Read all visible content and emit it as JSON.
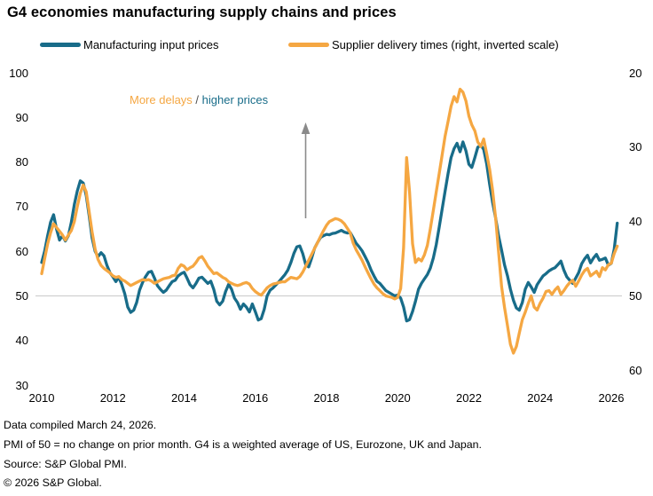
{
  "title": "G4 economies manufacturing supply chains and prices",
  "colors": {
    "input_prices": "#186c89",
    "delivery_times": "#f5a742",
    "gridline": "#c9c9c9",
    "arrow": "#8a8a8a",
    "annotation_slash": "#4d4d4d",
    "text": "#000000"
  },
  "legend": {
    "items": [
      {
        "label": "Manufacturing input prices",
        "color": "#186c89"
      },
      {
        "label": "Supplier delivery times (right, inverted scale)",
        "color": "#f5a742"
      }
    ]
  },
  "annotation": {
    "more_delays": "More delays",
    "separator": " / ",
    "higher_prices": "higher prices"
  },
  "axes": {
    "left": {
      "ticks": [
        100,
        90,
        80,
        70,
        60,
        50,
        40,
        30
      ],
      "range": [
        30,
        100
      ]
    },
    "right": {
      "ticks": [
        20,
        30,
        40,
        50,
        60
      ],
      "range": [
        20,
        60
      ],
      "inverted": true
    },
    "x": {
      "ticks": [
        2010,
        2012,
        2014,
        2016,
        2018,
        2020,
        2022,
        2024,
        2026
      ]
    },
    "gridline_at_left_value": 50
  },
  "footer": {
    "line1": "Data compiled March 24, 2026.",
    "line2": "PMI of 50 = no change on prior month. G4 is a weighted average of US, Eurozone, UK and Japan.",
    "line3": "Source: S&P Global PMI.",
    "line4": "© 2026 S&P Global."
  },
  "chart_data": {
    "type": "line",
    "x_start": 2010.0,
    "x_step_years": 0.083333,
    "x_unit": "monthly, Jan 2010 - Mar 2026",
    "xlim": [
      2010,
      2026.3
    ],
    "left_ylim": [
      30,
      100
    ],
    "right_ylim_inverted": [
      20,
      60
    ],
    "grid": "single horizontal line at 50",
    "legend_position": "top",
    "series": [
      {
        "name": "Manufacturing input prices",
        "axis": "left",
        "color": "#186c89",
        "values": [
          57.5,
          60,
          63.5,
          66.5,
          68.2,
          65,
          62.5,
          63.5,
          62.3,
          63.5,
          66.5,
          70.5,
          73.5,
          75.8,
          75.3,
          72.5,
          68,
          63,
          60,
          58.8,
          59.7,
          59,
          56.8,
          55.2,
          54.3,
          53.2,
          54.2,
          52.5,
          50.5,
          47.5,
          46.3,
          46.8,
          48.5,
          51.3,
          53,
          54.3,
          55.3,
          55.5,
          54,
          52.3,
          51.5,
          50.8,
          51.3,
          52.3,
          53.2,
          53.5,
          54.5,
          55,
          55.3,
          54,
          52.5,
          51.8,
          52.8,
          54,
          54.2,
          53.5,
          52.8,
          53.3,
          51.5,
          48.8,
          48,
          48.8,
          51,
          52.6,
          51.5,
          49.5,
          48.5,
          47,
          48.2,
          47.5,
          46.4,
          48.2,
          46.5,
          44.6,
          44.9,
          47,
          50,
          51.3,
          51.8,
          52.5,
          53.2,
          54,
          54.8,
          55.8,
          57.5,
          59.5,
          61,
          61.2,
          59.5,
          57,
          56.5,
          58.5,
          60.7,
          62,
          63.1,
          63.5,
          63.8,
          63.7,
          64,
          64.1,
          64.4,
          64.7,
          64.3,
          64.1,
          64.2,
          63,
          61.8,
          61,
          60.1,
          58.8,
          57.5,
          55.8,
          54.5,
          53.3,
          52.8,
          52,
          51.2,
          50.8,
          50.4,
          50,
          50.2,
          49.5,
          47.5,
          44.4,
          44.7,
          46.5,
          48.8,
          51.5,
          52.8,
          53.8,
          54.8,
          56.2,
          58.5,
          61.5,
          65.5,
          69.5,
          73.5,
          77.5,
          81,
          83,
          84.2,
          82.3,
          84.5,
          82.5,
          79.5,
          78.8,
          81,
          83.3,
          83.8,
          82.8,
          79.5,
          75,
          71,
          67.5,
          63.5,
          60.3,
          57,
          54.5,
          51.5,
          49,
          47.3,
          46.8,
          48.5,
          51.5,
          53,
          52,
          50.8,
          52.5,
          53.5,
          54.5,
          55,
          55.6,
          56,
          56.3,
          57,
          57.8,
          55.8,
          54.3,
          53.5,
          52.8,
          54,
          55.2,
          57.2,
          58.3,
          59.1,
          57.4,
          58.5,
          59.3,
          58,
          58.2,
          58.5,
          56.9,
          57.3,
          60.5,
          66.3
        ]
      },
      {
        "name": "Supplier delivery times (right, inverted scale)",
        "axis": "right",
        "color": "#f5a742",
        "values": [
          47,
          45,
          43,
          41.5,
          40.3,
          40.8,
          41.3,
          41.8,
          42.5,
          41.8,
          41.2,
          40,
          38,
          36.2,
          35.1,
          36,
          38.7,
          41.4,
          43.7,
          45.1,
          45.9,
          46.3,
          46.6,
          46.9,
          47.3,
          47.5,
          47.4,
          47.8,
          48,
          48.3,
          48.6,
          48.4,
          48.2,
          48,
          47.8,
          47.9,
          47.8,
          48,
          48.3,
          48.1,
          47.9,
          47.7,
          47.6,
          47.5,
          47.3,
          47.2,
          46.3,
          45.8,
          46,
          46.5,
          46.2,
          46,
          45.5,
          44.9,
          44.7,
          45.3,
          46,
          46.5,
          47,
          46.9,
          47.2,
          47.5,
          47.7,
          48.1,
          48.3,
          48.5,
          48.6,
          48.5,
          48.3,
          48.2,
          48.4,
          49,
          49.4,
          49.7,
          49.9,
          49.4,
          48.9,
          48.6,
          48.4,
          48.3,
          48.2,
          48.1,
          48.1,
          47.8,
          47.5,
          47.6,
          47.7,
          47.4,
          46.8,
          46,
          45.2,
          44.4,
          43.6,
          42.8,
          42,
          41.2,
          40.5,
          40,
          39.8,
          39.6,
          39.7,
          39.9,
          40.3,
          40.9,
          41.5,
          42.9,
          43.8,
          44.5,
          45.2,
          46.1,
          46.9,
          47.7,
          48.4,
          48.9,
          49.3,
          49.7,
          50,
          50.1,
          50.2,
          50.4,
          50.2,
          49,
          43.5,
          31.4,
          36,
          43,
          45.5,
          45,
          45.3,
          44.5,
          43.2,
          41,
          38.5,
          36,
          33.5,
          31,
          28.5,
          26.5,
          24.5,
          23.2,
          23.9,
          22.2,
          22.6,
          23.8,
          25.8,
          27,
          27.8,
          29.3,
          29.9,
          28.9,
          30.9,
          33,
          35.8,
          39.5,
          44,
          48.7,
          51.5,
          54,
          56.5,
          57.7,
          56.8,
          55,
          53.2,
          52.2,
          51,
          50,
          51.5,
          51.9,
          51,
          50.3,
          49.4,
          49.3,
          49.8,
          49.2,
          48.8,
          49.8,
          49.3,
          48.7,
          48.2,
          47.9,
          48.7,
          48,
          47.2,
          46.6,
          46.3,
          47.3,
          47,
          46.7,
          47.4,
          46.2,
          46.5,
          45.8,
          45.6,
          44.3,
          43.3
        ]
      }
    ]
  }
}
